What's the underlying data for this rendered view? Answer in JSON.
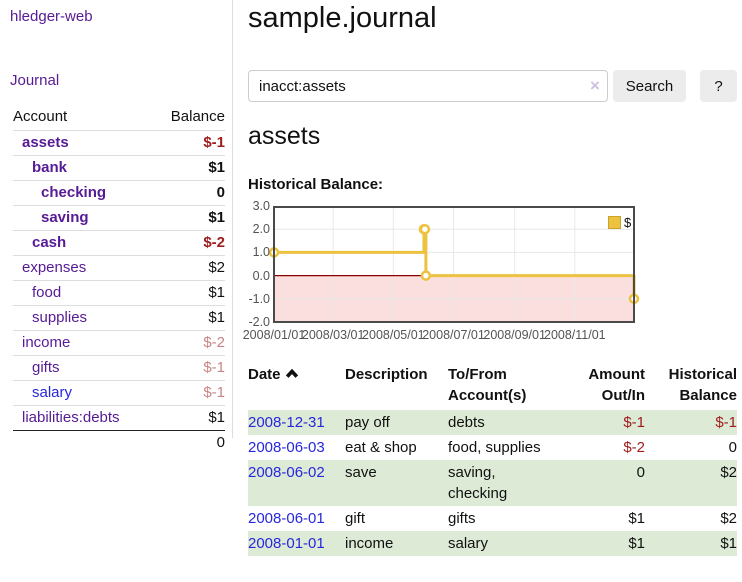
{
  "sidebar": {
    "brand": "hledger-web",
    "nav": {
      "journal": "Journal"
    },
    "header": {
      "account": "Account",
      "balance": "Balance"
    },
    "accounts": [
      {
        "name": "assets",
        "level": 1,
        "bold": true,
        "link": "purple",
        "balance": "$-1",
        "balance_style": "neg-strong"
      },
      {
        "name": "bank",
        "level": 2,
        "bold": true,
        "link": "purple",
        "balance": "$1",
        "balance_style": "plain"
      },
      {
        "name": "checking",
        "level": 3,
        "bold": true,
        "link": "purple",
        "balance": "0",
        "balance_style": "plain"
      },
      {
        "name": "saving",
        "level": 3,
        "bold": true,
        "link": "purple",
        "balance": "$1",
        "balance_style": "plain"
      },
      {
        "name": "cash",
        "level": 2,
        "bold": true,
        "link": "purple",
        "balance": "$-2",
        "balance_style": "neg-strong"
      },
      {
        "name": "expenses",
        "level": 1,
        "bold": false,
        "link": "purple",
        "balance": "$2",
        "balance_style": "plain"
      },
      {
        "name": "food",
        "level": 2,
        "bold": false,
        "link": "purple",
        "balance": "$1",
        "balance_style": "plain"
      },
      {
        "name": "supplies",
        "level": 2,
        "bold": false,
        "link": "purple",
        "balance": "$1",
        "balance_style": "plain"
      },
      {
        "name": "income",
        "level": 1,
        "bold": false,
        "link": "purple",
        "balance": "$-2",
        "balance_style": "neg-soft"
      },
      {
        "name": "gifts",
        "level": 2,
        "bold": false,
        "link": "purple",
        "balance": "$-1",
        "balance_style": "neg-soft"
      },
      {
        "name": "salary",
        "level": 2,
        "bold": false,
        "link": "blue",
        "balance": "$-1",
        "balance_style": "neg-soft"
      },
      {
        "name": "liabilities:debts",
        "level": 1,
        "bold": false,
        "link": "purple",
        "balance": "$1",
        "balance_style": "plain"
      }
    ],
    "total": "0"
  },
  "main": {
    "title": "sample.journal",
    "search": {
      "value": "inacct:assets",
      "clear_label": "×",
      "search_button": "Search",
      "help_button": "?"
    },
    "account_heading": "assets",
    "chart_title": "Historical Balance:"
  },
  "chart_data": {
    "type": "line",
    "step": true,
    "title": "Historical Balance",
    "series": [
      {
        "name": "$",
        "color": "#edc240",
        "points": [
          [
            "2008-01-01",
            1
          ],
          [
            "2008-06-01",
            2
          ],
          [
            "2008-06-02",
            2
          ],
          [
            "2008-06-03",
            0
          ],
          [
            "2008-12-31",
            -1
          ]
        ]
      }
    ],
    "xlim": [
      "2008-01-01",
      "2008-12-31"
    ],
    "ylim": [
      -2,
      3
    ],
    "x_tick_dates": [
      "2008-01-01",
      "2008-03-01",
      "2008-05-01",
      "2008-07-01",
      "2008-09-01",
      "2008-11-01"
    ],
    "x_tick_labels": [
      "2008/01/01",
      "2008/03/01",
      "2008/05/01",
      "2008/07/01",
      "2008/09/01",
      "2008/11/01"
    ],
    "y_ticks": [
      "3.0",
      "2.0",
      "1.0",
      "0.0",
      "-1.0",
      "-2.0"
    ],
    "legend": {
      "label": "$",
      "position": "top-right"
    },
    "grid": true,
    "grid_color": "#e8e8e8",
    "border_color": "#4a4a4a",
    "zero_line_color": "#8b0000",
    "negative_fill": "#fbdfdf"
  },
  "register": {
    "headers": {
      "date": "Date",
      "description": "Description",
      "tofrom_line1": "To/From",
      "tofrom_line2": "Account(s)",
      "amount_line1": "Amount",
      "amount_line2": "Out/In",
      "balance_line1": "Historical",
      "balance_line2": "Balance"
    },
    "rows": [
      {
        "date": "2008-12-31",
        "description": "pay off",
        "accounts": "debts",
        "amount": "$-1",
        "amount_neg": true,
        "balance": "$-1",
        "balance_neg": true,
        "shaded": true
      },
      {
        "date": "2008-06-03",
        "description": "eat & shop",
        "accounts": "food, supplies",
        "amount": "$-2",
        "amount_neg": true,
        "balance": "0",
        "balance_neg": false,
        "shaded": false
      },
      {
        "date": "2008-06-02",
        "description": "save",
        "accounts": "saving, checking",
        "amount": "0",
        "amount_neg": false,
        "balance": "$2",
        "balance_neg": false,
        "shaded": true
      },
      {
        "date": "2008-06-01",
        "description": "gift",
        "accounts": "gifts",
        "amount": "$1",
        "amount_neg": false,
        "balance": "$2",
        "balance_neg": false,
        "shaded": false
      },
      {
        "date": "2008-01-01",
        "description": "income",
        "accounts": "salary",
        "amount": "$1",
        "amount_neg": false,
        "balance": "$1",
        "balance_neg": false,
        "shaded": true
      }
    ]
  },
  "colors": {
    "link_purple": "#561b95",
    "link_blue": "#2727dd",
    "neg_strong": "#a11d1d",
    "neg_soft": "#c98585",
    "row_green": "#ddead6",
    "accent_gold": "#edc240"
  }
}
